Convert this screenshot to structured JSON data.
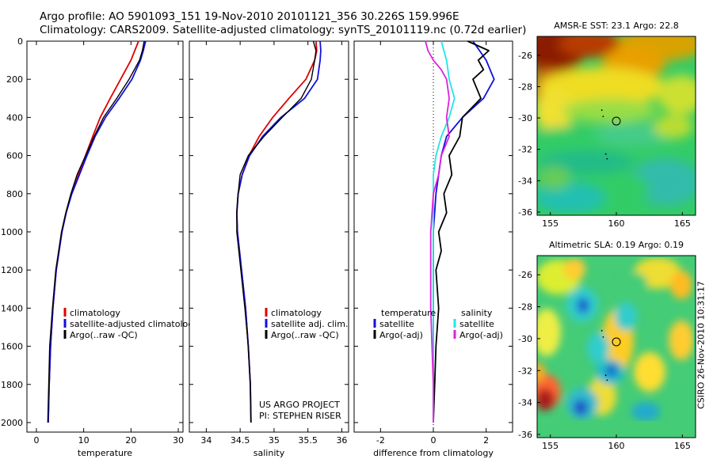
{
  "header": {
    "line1": "Argo profile: AO 5901093_151 19-Nov-2010 20101121_356 30.226S 159.996E",
    "line2": "Climatology: CARS2009. Satellite-adjusted climatology: synTS_20101119.nc (0.72d earlier)"
  },
  "side_stamp": "CSIRO 26-Nov-2010 10:31:17",
  "colors": {
    "climatology": "#dd0000",
    "satellite": "#1010dd",
    "argo": "#000000",
    "sat_salinity": "#22e5e5",
    "argo_salinity": "#dd22dd"
  },
  "chart_data": [
    {
      "type": "line",
      "panel": "temperature",
      "xlabel": "temperature",
      "ylabel": "",
      "xlim": [
        -2,
        31
      ],
      "ylim": [
        2050,
        0
      ],
      "xticks": [
        "0",
        "10",
        "20",
        "30"
      ],
      "yticks": [
        "0",
        "200",
        "400",
        "600",
        "800",
        "1000",
        "1200",
        "1400",
        "1600",
        "1800",
        "2000"
      ],
      "legend": [
        "climatology",
        "satellite-adjusted climatology",
        "Argo(..raw -QC)"
      ],
      "series": [
        {
          "name": "climatology",
          "depth": [
            0,
            50,
            100,
            200,
            300,
            400,
            500,
            600,
            700,
            800,
            900,
            1000,
            1200,
            1400,
            1600,
            1800,
            2000
          ],
          "values": [
            21.6,
            20.8,
            20.0,
            17.8,
            15.6,
            13.5,
            11.9,
            10.4,
            8.9,
            7.4,
            6.3,
            5.4,
            4.2,
            3.5,
            3.0,
            2.7,
            2.5
          ]
        },
        {
          "name": "satellite-adjusted climatology",
          "depth": [
            0,
            50,
            100,
            200,
            300,
            400,
            500,
            600,
            700,
            800,
            900,
            1000,
            1200,
            1400,
            1600,
            1800,
            2000
          ],
          "values": [
            23.1,
            22.6,
            22.0,
            20.2,
            17.5,
            14.6,
            12.4,
            10.7,
            9.1,
            7.5,
            6.3,
            5.4,
            4.2,
            3.5,
            3.0,
            2.7,
            2.5
          ]
        },
        {
          "name": "Argo(..raw -QC)",
          "depth": [
            0,
            50,
            100,
            200,
            300,
            400,
            500,
            600,
            700,
            800,
            900,
            1000,
            1200,
            1400,
            1600,
            1800,
            2000
          ],
          "values": [
            22.8,
            22.4,
            21.8,
            19.6,
            17.0,
            14.2,
            12.2,
            10.4,
            8.6,
            7.3,
            6.2,
            5.3,
            4.1,
            3.4,
            2.8,
            2.6,
            2.4
          ]
        }
      ]
    },
    {
      "type": "line",
      "panel": "salinity",
      "xlabel": "salinity",
      "ylabel": "",
      "xlim": [
        33.75,
        36.1
      ],
      "ylim": [
        2050,
        0
      ],
      "xticks": [
        "34",
        "34.5",
        "35",
        "35.5",
        "36"
      ],
      "legend": [
        "climatology",
        "satellite adj. clim.",
        "Argo(..raw -QC)"
      ],
      "annotation": [
        "US ARGO PROJECT",
        "PI: STEPHEN RISER"
      ],
      "series": [
        {
          "name": "climatology",
          "depth": [
            0,
            50,
            100,
            200,
            300,
            400,
            500,
            600,
            700,
            800,
            900,
            1000,
            1200,
            1400,
            1600,
            1800,
            2000
          ],
          "values": [
            35.62,
            35.63,
            35.6,
            35.47,
            35.22,
            34.98,
            34.78,
            34.63,
            34.53,
            34.47,
            34.45,
            34.46,
            34.52,
            34.58,
            34.62,
            34.65,
            34.66
          ]
        },
        {
          "name": "satellite adj. clim.",
          "depth": [
            0,
            50,
            100,
            200,
            300,
            400,
            500,
            600,
            700,
            800,
            900,
            1000,
            1200,
            1400,
            1600,
            1800,
            2000
          ],
          "values": [
            35.68,
            35.69,
            35.68,
            35.64,
            35.45,
            35.1,
            34.83,
            34.64,
            34.53,
            34.47,
            34.45,
            34.46,
            34.52,
            34.58,
            34.62,
            34.65,
            34.66
          ]
        },
        {
          "name": "Argo(..raw -QC)",
          "depth": [
            0,
            50,
            100,
            200,
            300,
            400,
            500,
            600,
            700,
            800,
            900,
            1000,
            1200,
            1400,
            1600,
            1800,
            2000
          ],
          "values": [
            35.58,
            35.62,
            35.6,
            35.55,
            35.4,
            35.12,
            34.85,
            34.62,
            34.5,
            34.47,
            34.45,
            34.45,
            34.51,
            34.57,
            34.62,
            34.65,
            34.66
          ]
        }
      ]
    },
    {
      "type": "line",
      "panel": "difference",
      "xlabel": "difference from climatology",
      "ylabel": "",
      "xlim": [
        -3,
        3
      ],
      "ylim": [
        2050,
        0
      ],
      "xticks": [
        "-2",
        "0",
        "2"
      ],
      "legend_left_title": "temperature",
      "legend_right_title": "salinity",
      "legend": [
        "satellite",
        "Argo(-adj)",
        "satellite",
        "Argo(-adj)"
      ],
      "series": [
        {
          "name": "temperature satellite",
          "depth": [
            0,
            100,
            200,
            300,
            400,
            500,
            600,
            700,
            800,
            1000,
            1200,
            1400,
            1600,
            2000
          ],
          "values": [
            1.5,
            2.0,
            2.3,
            1.9,
            1.1,
            0.5,
            0.3,
            0.2,
            0.1,
            0.0,
            0.0,
            0.0,
            0.0,
            0.0
          ]
        },
        {
          "name": "temperature Argo(-adj)",
          "depth": [
            0,
            50,
            100,
            150,
            200,
            300,
            400,
            500,
            600,
            700,
            800,
            900,
            1000,
            1100,
            1200,
            1400,
            1600,
            1800,
            2000
          ],
          "values": [
            1.3,
            2.1,
            1.7,
            1.9,
            1.5,
            1.8,
            1.1,
            1.0,
            0.6,
            0.7,
            0.4,
            0.5,
            0.2,
            0.3,
            0.1,
            0.2,
            0.1,
            0.05,
            0.0
          ]
        },
        {
          "name": "salinity satellite",
          "depth": [
            0,
            50,
            100,
            200,
            300,
            400,
            500,
            600,
            700,
            800,
            1000,
            1200,
            1400,
            1600,
            2000
          ],
          "values": [
            0.3,
            0.4,
            0.5,
            0.6,
            0.8,
            0.6,
            0.3,
            0.1,
            0.0,
            0.0,
            0.0,
            0.0,
            0.0,
            0.0,
            0.0
          ]
        },
        {
          "name": "salinity Argo(-adj)",
          "depth": [
            0,
            50,
            100,
            150,
            200,
            300,
            400,
            500,
            600,
            700,
            800,
            1000,
            1200,
            1400,
            1600,
            1800,
            2000
          ],
          "values": [
            -0.3,
            -0.2,
            0.0,
            0.3,
            0.5,
            0.6,
            0.5,
            0.6,
            0.3,
            0.2,
            0.0,
            -0.1,
            -0.1,
            -0.1,
            -0.05,
            0.0,
            0.0
          ]
        }
      ]
    },
    {
      "type": "heatmap",
      "panel": "sst-map",
      "title": "AMSR-E SST: 23.1  Argo: 22.8",
      "xlim": [
        154,
        166
      ],
      "ylim": [
        -36.2,
        -24.8
      ],
      "xticks": [
        "155",
        "160",
        "165"
      ],
      "yticks": [
        "-26",
        "-28",
        "-30",
        "-32",
        "-34",
        "-36"
      ],
      "marker": {
        "lon": 160.0,
        "lat": -30.2
      }
    },
    {
      "type": "heatmap",
      "panel": "sla-map",
      "title": "Altimetric SLA: 0.19  Argo: 0.19",
      "xlim": [
        154,
        166
      ],
      "ylim": [
        -36.2,
        -24.8
      ],
      "xticks": [
        "155",
        "160",
        "165"
      ],
      "yticks": [
        "-26",
        "-28",
        "-30",
        "-32",
        "-34",
        "-36"
      ],
      "marker": {
        "lon": 160.0,
        "lat": -30.2
      }
    }
  ]
}
